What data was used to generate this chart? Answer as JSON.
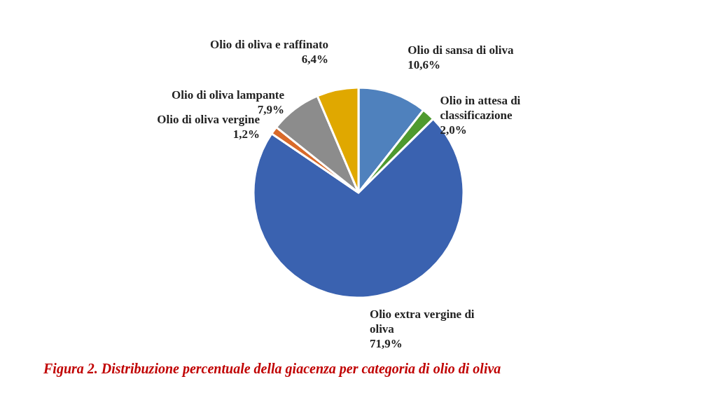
{
  "chart_data": {
    "type": "pie",
    "categories": [
      "Olio di sansa di oliva",
      "Olio in attesa di classificazione",
      "Olio extra vergine di oliva",
      "Olio di oliva vergine",
      "Olio di oliva lampante",
      "Olio di oliva e raffinato"
    ],
    "values": [
      10.6,
      2.0,
      71.9,
      1.2,
      7.9,
      6.4
    ],
    "colors": [
      "#4f81bd",
      "#4e9a2f",
      "#3a62b0",
      "#d96a2a",
      "#8c8c8c",
      "#e0a800"
    ],
    "value_labels": [
      "10,6%",
      "2,0%",
      "71,9%",
      "1,2%",
      "7,9%",
      "6,4%"
    ],
    "legend": false,
    "annotations": [
      "Figura 2. Distribuzione percentuale della giacenza per categoria di olio di oliva"
    ]
  }
}
